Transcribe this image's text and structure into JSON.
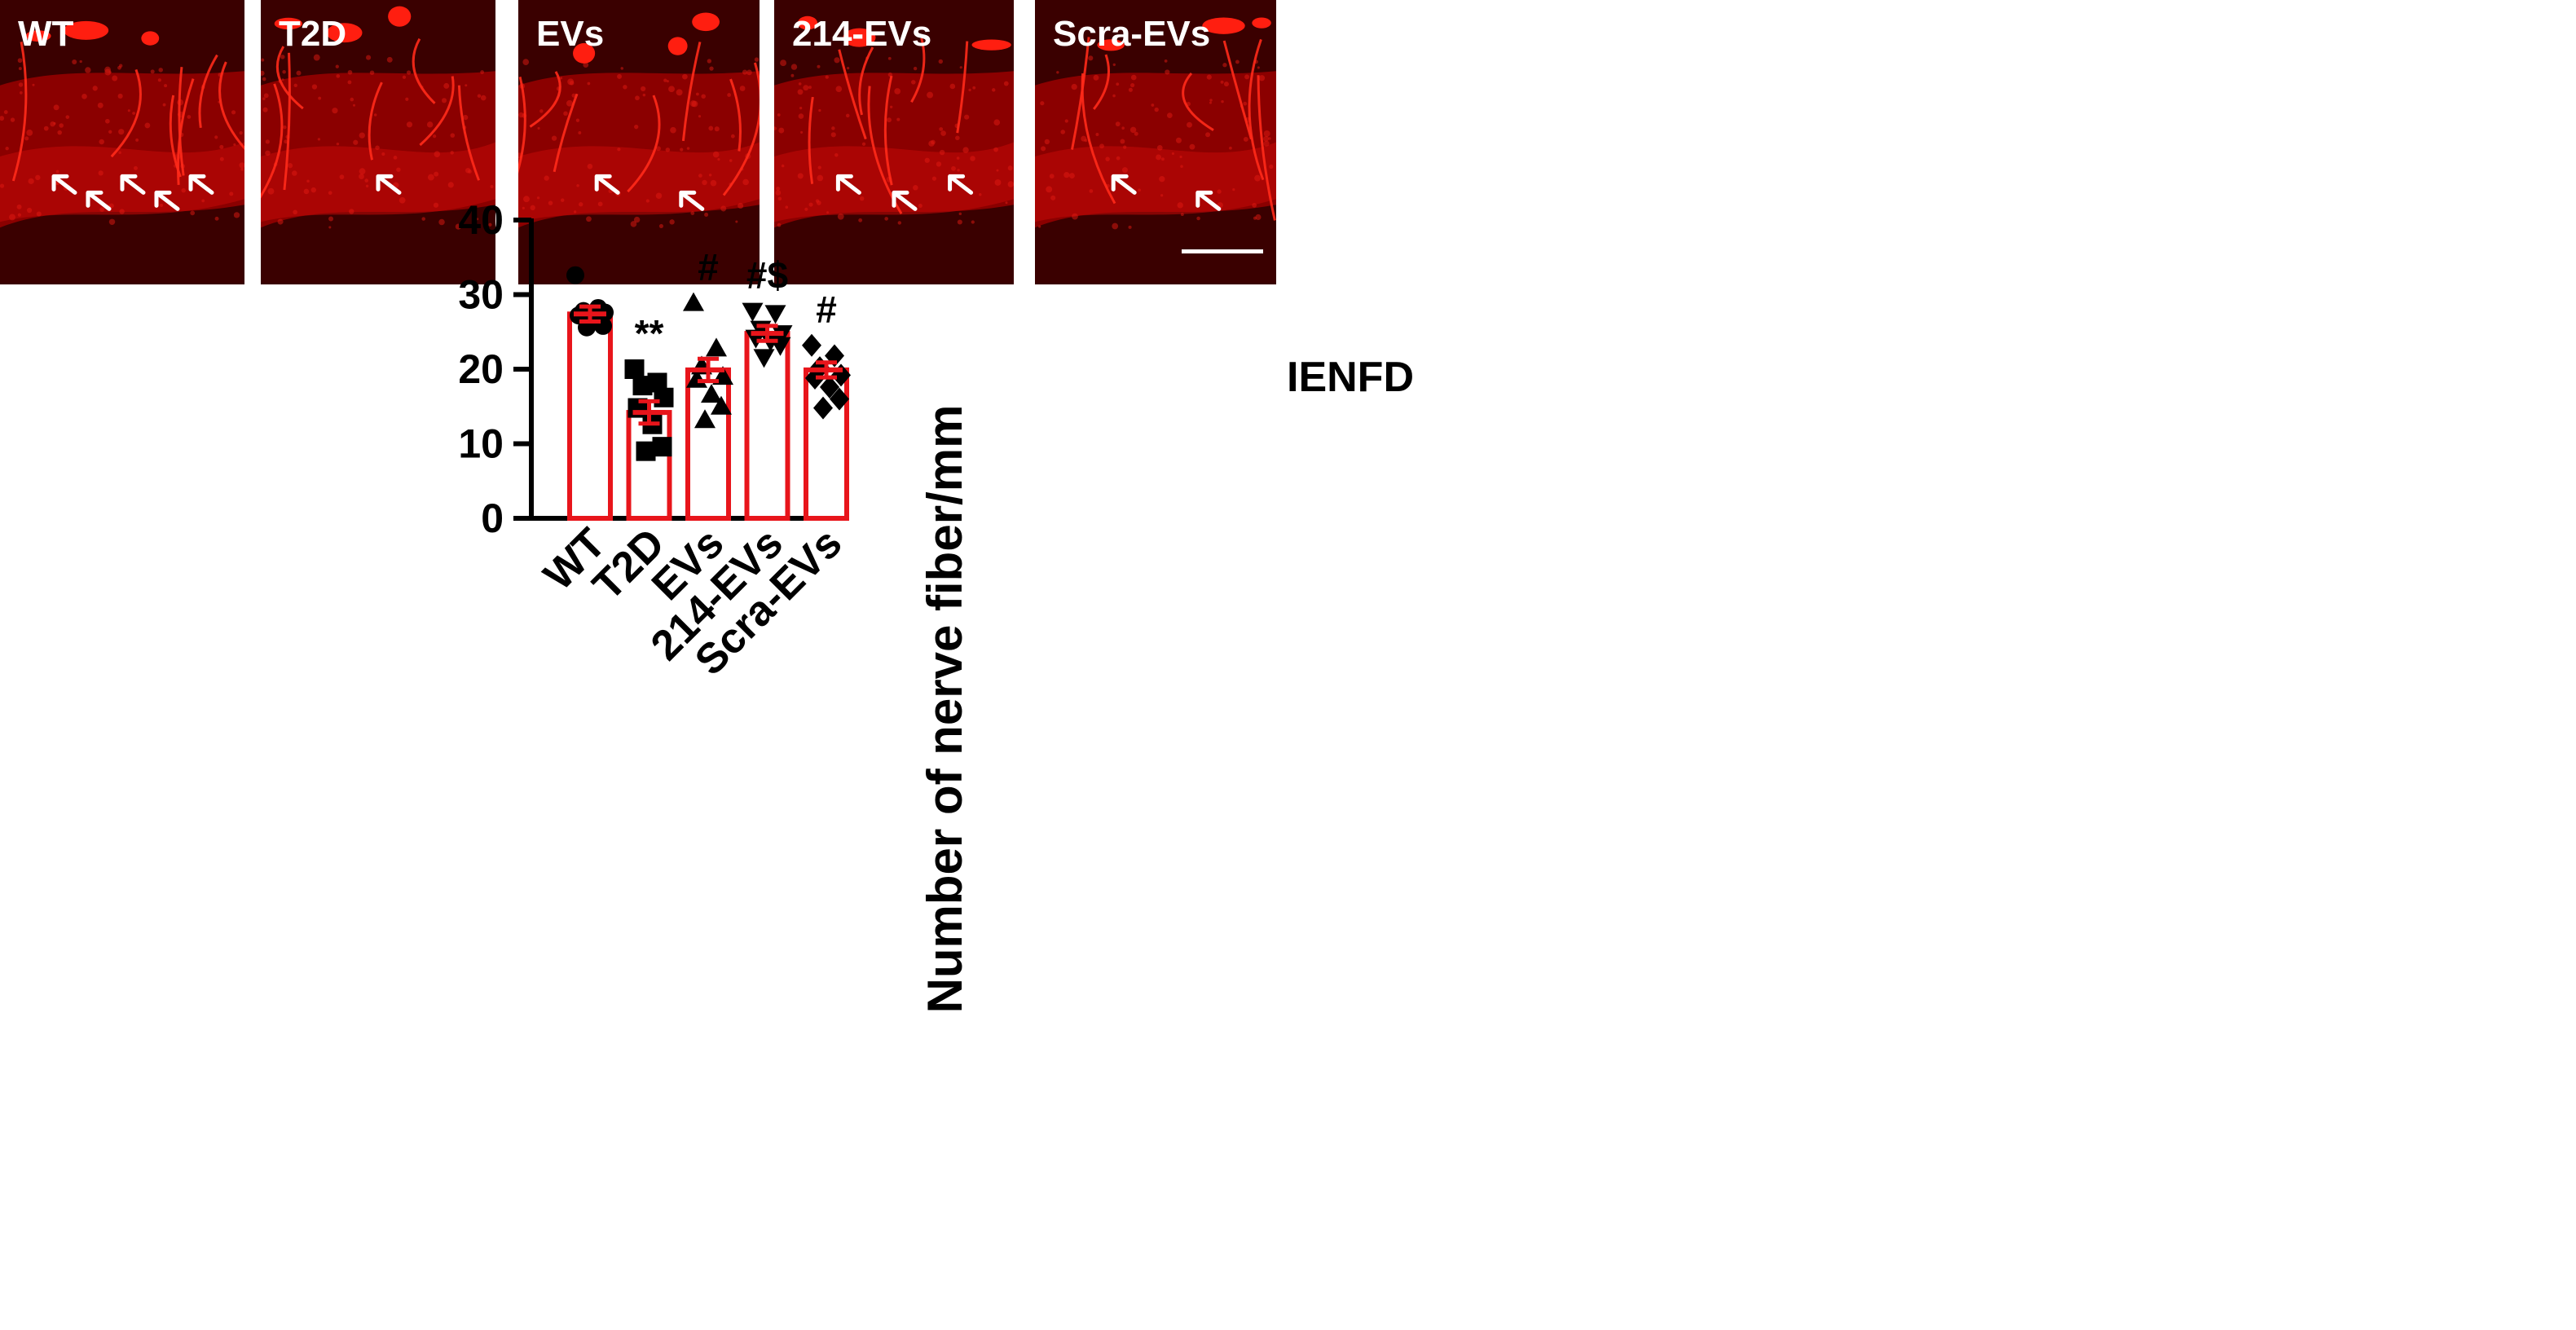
{
  "panels": [
    {
      "label": "WT"
    },
    {
      "label": "T2D"
    },
    {
      "label": "EVs"
    },
    {
      "label": "214-EVs"
    },
    {
      "label": "Scra-EVs"
    }
  ],
  "colors": {
    "bar": "#e8151b",
    "points": "#000000",
    "tissue_dark": "#3a0000",
    "tissue_mid": "#9a0000",
    "fiber": "#ff2a1a"
  },
  "chart_data": {
    "type": "bar",
    "title": "IENFD",
    "ylabel": "Number of nerve fiber/mm",
    "xlabel": "",
    "ylim": [
      0,
      40
    ],
    "yticks": [
      0,
      10,
      20,
      30,
      40
    ],
    "categories": [
      "WT",
      "T2D",
      "EVs",
      "214-EVs",
      "Scra-EVs"
    ],
    "values": [
      27.4,
      14.2,
      19.9,
      24.8,
      19.9
    ],
    "sem": [
      1.0,
      1.5,
      1.5,
      1.0,
      1.0
    ],
    "annotations": [
      "",
      "**",
      "#",
      "#$",
      "#"
    ],
    "markers": [
      "circle",
      "square",
      "triangle-up",
      "triangle-down",
      "diamond"
    ],
    "points": [
      [
        32.6,
        28.2,
        27.8,
        27.6,
        27.2,
        26.4,
        25.8,
        25.6
      ],
      [
        20.0,
        18.2,
        17.8,
        16.2,
        14.8,
        12.6,
        9.6,
        9.0
      ],
      [
        28.9,
        22.8,
        20.4,
        19.0,
        18.6,
        16.6,
        15.0,
        13.2
      ],
      [
        27.8,
        27.5,
        25.4,
        24.8,
        24.2,
        23.8,
        23.2,
        21.6
      ],
      [
        23.2,
        21.8,
        20.2,
        19.2,
        18.8,
        17.6,
        16.0,
        14.8
      ]
    ]
  }
}
